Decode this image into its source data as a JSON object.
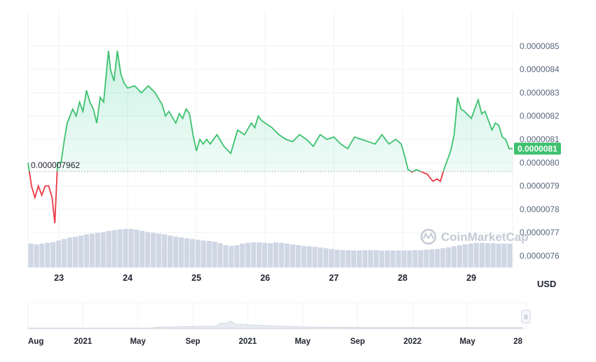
{
  "chart_data": {
    "type": "line",
    "currency": "USD",
    "reference_value": 7.962e-06,
    "reference_label": "0.000007962",
    "current_price_label": "0.0000081",
    "ylim": [
      7.55e-06,
      8.65e-06
    ],
    "y_ticks": [
      7.6e-06,
      7.7e-06,
      7.8e-06,
      7.9e-06,
      8e-06,
      8.1e-06,
      8.2e-06,
      8.3e-06,
      8.4e-06,
      8.5e-06
    ],
    "y_tick_labels": [
      "0.0000076",
      "0.0000077",
      "0.0000078",
      "0.0000079",
      "0.0000080",
      "0.0000081",
      "0.0000082",
      "0.0000083",
      "0.0000084",
      "0.0000085"
    ],
    "x_range": [
      22.55,
      29.6
    ],
    "x_ticks": [
      23,
      24,
      25,
      26,
      27,
      28,
      29
    ],
    "x_tick_labels": [
      "23",
      "24",
      "25",
      "26",
      "27",
      "28",
      "29"
    ],
    "series": [
      {
        "x": [
          22.55,
          22.6,
          22.65,
          22.7,
          22.75,
          22.8,
          22.85,
          22.9,
          22.94,
          22.98,
          23.03,
          23.08,
          23.12,
          23.2,
          23.25,
          23.3,
          23.35,
          23.4,
          23.45,
          23.5,
          23.55,
          23.6,
          23.65,
          23.72,
          23.75,
          23.8,
          23.85,
          23.9,
          23.95,
          24.0,
          24.1,
          24.2,
          24.3,
          24.4,
          24.5,
          24.55,
          24.6,
          24.7,
          24.75,
          24.8,
          24.85,
          24.9,
          24.95,
          25.0,
          25.05,
          25.1,
          25.15,
          25.2,
          25.3,
          25.4,
          25.5,
          25.6,
          25.7,
          25.8,
          25.85,
          25.9,
          25.95,
          26.0,
          26.1,
          26.2,
          26.3,
          26.4,
          26.5,
          26.6,
          26.7,
          26.8,
          26.9,
          27.0,
          27.1,
          27.2,
          27.3,
          27.4,
          27.5,
          27.6,
          27.7,
          27.8,
          27.9,
          27.98,
          28.02,
          28.08,
          28.14,
          28.2,
          28.28,
          28.36,
          28.44,
          28.5,
          28.55,
          28.6,
          28.65,
          28.7,
          28.75,
          28.8,
          28.85,
          28.9,
          29.0,
          29.05,
          29.1,
          29.15,
          29.2,
          29.25,
          29.3,
          29.35,
          29.4,
          29.45,
          29.5,
          29.55,
          29.6
        ],
        "y": [
          8e-06,
          7.9e-06,
          7.85e-06,
          7.9e-06,
          7.86e-06,
          7.9e-06,
          7.9e-06,
          7.85e-06,
          7.74e-06,
          8e-06,
          8e-06,
          8.1e-06,
          8.17e-06,
          8.23e-06,
          8.2e-06,
          8.26e-06,
          8.22e-06,
          8.31e-06,
          8.26e-06,
          8.23e-06,
          8.17e-06,
          8.28e-06,
          8.26e-06,
          8.48e-06,
          8.4e-06,
          8.35e-06,
          8.48e-06,
          8.38e-06,
          8.34e-06,
          8.32e-06,
          8.33e-06,
          8.3e-06,
          8.33e-06,
          8.3e-06,
          8.25e-06,
          8.2e-06,
          8.22e-06,
          8.17e-06,
          8.21e-06,
          8.19e-06,
          8.23e-06,
          8.21e-06,
          8.12e-06,
          8.05e-06,
          8.1e-06,
          8.08e-06,
          8.1e-06,
          8.08e-06,
          8.12e-06,
          8.07e-06,
          8.04e-06,
          8.14e-06,
          8.12e-06,
          8.17e-06,
          8.15e-06,
          8.2e-06,
          8.18e-06,
          8.17e-06,
          8.15e-06,
          8.12e-06,
          8.1e-06,
          8.09e-06,
          8.12e-06,
          8.1e-06,
          8.07e-06,
          8.12e-06,
          8.1e-06,
          8.11e-06,
          8.08e-06,
          8.06e-06,
          8.11e-06,
          8.1e-06,
          8.09e-06,
          8.08e-06,
          8.12e-06,
          8.08e-06,
          8.1e-06,
          8.08e-06,
          8.04e-06,
          7.97e-06,
          7.96e-06,
          7.97e-06,
          7.96e-06,
          7.95e-06,
          7.92e-06,
          7.93e-06,
          7.92e-06,
          7.97e-06,
          8.01e-06,
          8.05e-06,
          8.12e-06,
          8.28e-06,
          8.23e-06,
          8.22e-06,
          8.19e-06,
          8.23e-06,
          8.27e-06,
          8.21e-06,
          8.22e-06,
          8.18e-06,
          8.14e-06,
          8.17e-06,
          8.16e-06,
          8.11e-06,
          8.1e-06,
          8.06e-06,
          8.06e-06
        ]
      }
    ],
    "volume_relative": [
      0.62,
      0.6,
      0.62,
      0.64,
      0.66,
      0.7,
      0.74,
      0.78,
      0.8,
      0.83,
      0.86,
      0.88,
      0.9,
      0.92,
      0.95,
      0.97,
      0.99,
      1.0,
      1.0,
      0.98,
      0.95,
      0.92,
      0.9,
      0.88,
      0.86,
      0.83,
      0.8,
      0.78,
      0.76,
      0.74,
      0.72,
      0.7,
      0.69,
      0.67,
      0.63,
      0.58,
      0.56,
      0.58,
      0.62,
      0.64,
      0.65,
      0.65,
      0.64,
      0.63,
      0.65,
      0.64,
      0.62,
      0.6,
      0.58,
      0.56,
      0.55,
      0.54,
      0.52,
      0.5,
      0.48,
      0.46,
      0.45,
      0.45,
      0.44,
      0.44,
      0.45,
      0.45,
      0.45,
      0.44,
      0.44,
      0.44,
      0.44,
      0.44,
      0.44,
      0.45,
      0.45,
      0.46,
      0.47,
      0.48,
      0.5,
      0.52,
      0.55,
      0.58,
      0.6,
      0.62,
      0.64,
      0.64,
      0.63,
      0.63,
      0.62,
      0.62,
      0.62
    ],
    "navigator": {
      "x_labels": [
        "Aug",
        "2021",
        "May",
        "Sep",
        "2021",
        "May",
        "Sep",
        "2022",
        "May",
        "28"
      ],
      "bold_labels": [
        false,
        true,
        false,
        false,
        true,
        false,
        false,
        true,
        false,
        false
      ],
      "handle_label": "II"
    },
    "watermark": "CoinMarketCap",
    "colors": {
      "up": "#16c784",
      "line_up": "#3ec16f",
      "down": "#ea3943",
      "volume": "#cfd6e4",
      "grid": "#eff2f5",
      "badge": "#3ec16f"
    }
  }
}
